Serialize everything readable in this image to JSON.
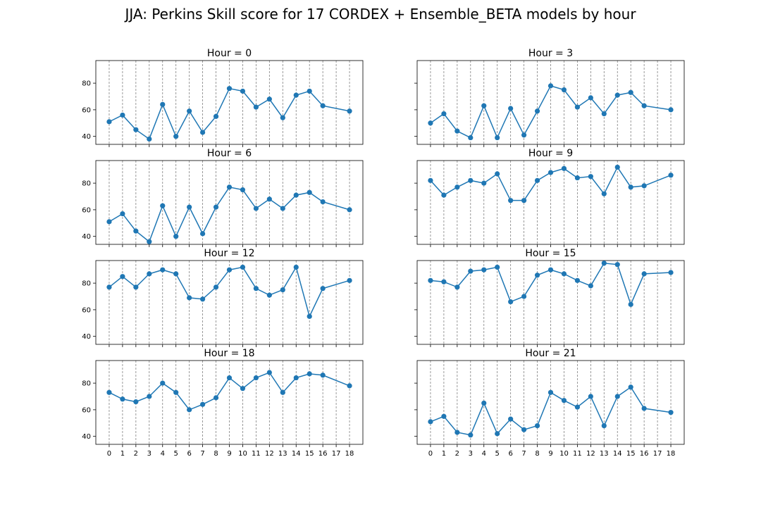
{
  "figure": {
    "title": "JJA: Perkins Skill score for 17 CORDEX + Ensemble_BETA models by hour"
  },
  "colors": {
    "series": "#1f77b4",
    "grid": "#808080",
    "axis": "#000000"
  },
  "chart_data": [
    {
      "type": "line",
      "title": "Hour = 0",
      "x": [
        0,
        1,
        2,
        3,
        4,
        5,
        6,
        7,
        8,
        9,
        10,
        11,
        12,
        13,
        14,
        15,
        16,
        18
      ],
      "values": [
        51,
        56,
        45,
        38,
        64,
        40,
        59,
        43,
        55,
        76,
        74,
        62,
        68,
        54,
        71,
        74,
        63,
        59
      ],
      "xticks": [
        0,
        1,
        2,
        3,
        4,
        5,
        6,
        7,
        8,
        9,
        10,
        11,
        12,
        13,
        14,
        15,
        16,
        17,
        18
      ],
      "yticks": [
        40,
        60,
        80
      ],
      "xlim": [
        -1,
        19
      ],
      "ylim": [
        34,
        97
      ],
      "grid": "vertical dashed"
    },
    {
      "type": "line",
      "title": "Hour = 3",
      "x": [
        0,
        1,
        2,
        3,
        4,
        5,
        6,
        7,
        8,
        9,
        10,
        11,
        12,
        13,
        14,
        15,
        16,
        18
      ],
      "values": [
        50,
        57,
        44,
        39,
        63,
        39,
        61,
        41,
        59,
        78,
        75,
        62,
        69,
        57,
        71,
        73,
        63,
        60
      ],
      "xticks": [
        0,
        1,
        2,
        3,
        4,
        5,
        6,
        7,
        8,
        9,
        10,
        11,
        12,
        13,
        14,
        15,
        16,
        17,
        18
      ],
      "yticks": [
        40,
        60,
        80
      ],
      "xlim": [
        -1,
        19
      ],
      "ylim": [
        34,
        97
      ],
      "grid": "vertical dashed"
    },
    {
      "type": "line",
      "title": "Hour = 6",
      "x": [
        0,
        1,
        2,
        3,
        4,
        5,
        6,
        7,
        8,
        9,
        10,
        11,
        12,
        13,
        14,
        15,
        16,
        18
      ],
      "values": [
        51,
        57,
        44,
        36,
        63,
        40,
        62,
        42,
        62,
        77,
        75,
        61,
        68,
        61,
        71,
        73,
        66,
        60
      ],
      "xticks": [
        0,
        1,
        2,
        3,
        4,
        5,
        6,
        7,
        8,
        9,
        10,
        11,
        12,
        13,
        14,
        15,
        16,
        17,
        18
      ],
      "yticks": [
        40,
        60,
        80
      ],
      "xlim": [
        -1,
        19
      ],
      "ylim": [
        34,
        97
      ],
      "grid": "vertical dashed"
    },
    {
      "type": "line",
      "title": "Hour = 9",
      "x": [
        0,
        1,
        2,
        3,
        4,
        5,
        6,
        7,
        8,
        9,
        10,
        11,
        12,
        13,
        14,
        15,
        16,
        18
      ],
      "values": [
        82,
        71,
        77,
        82,
        80,
        87,
        67,
        67,
        82,
        88,
        91,
        84,
        85,
        72,
        92,
        77,
        78,
        86
      ],
      "xticks": [
        0,
        1,
        2,
        3,
        4,
        5,
        6,
        7,
        8,
        9,
        10,
        11,
        12,
        13,
        14,
        15,
        16,
        17,
        18
      ],
      "yticks": [
        40,
        60,
        80
      ],
      "xlim": [
        -1,
        19
      ],
      "ylim": [
        34,
        97
      ],
      "grid": "vertical dashed"
    },
    {
      "type": "line",
      "title": "Hour = 12",
      "x": [
        0,
        1,
        2,
        3,
        4,
        5,
        6,
        7,
        8,
        9,
        10,
        11,
        12,
        13,
        14,
        15,
        16,
        18
      ],
      "values": [
        77,
        85,
        77,
        87,
        90,
        87,
        69,
        68,
        77,
        90,
        92,
        76,
        71,
        75,
        92,
        55,
        76,
        82
      ],
      "xticks": [
        0,
        1,
        2,
        3,
        4,
        5,
        6,
        7,
        8,
        9,
        10,
        11,
        12,
        13,
        14,
        15,
        16,
        17,
        18
      ],
      "yticks": [
        40,
        60,
        80
      ],
      "xlim": [
        -1,
        19
      ],
      "ylim": [
        34,
        97
      ],
      "grid": "vertical dashed"
    },
    {
      "type": "line",
      "title": "Hour = 15",
      "x": [
        0,
        1,
        2,
        3,
        4,
        5,
        6,
        7,
        8,
        9,
        10,
        11,
        12,
        13,
        14,
        15,
        16,
        18
      ],
      "values": [
        82,
        81,
        77,
        89,
        90,
        92,
        66,
        70,
        86,
        90,
        87,
        82,
        78,
        95,
        94,
        64,
        87,
        88
      ],
      "xticks": [
        0,
        1,
        2,
        3,
        4,
        5,
        6,
        7,
        8,
        9,
        10,
        11,
        12,
        13,
        14,
        15,
        16,
        17,
        18
      ],
      "yticks": [
        40,
        60,
        80
      ],
      "xlim": [
        -1,
        19
      ],
      "ylim": [
        34,
        97
      ],
      "grid": "vertical dashed"
    },
    {
      "type": "line",
      "title": "Hour = 18",
      "x": [
        0,
        1,
        2,
        3,
        4,
        5,
        6,
        7,
        8,
        9,
        10,
        11,
        12,
        13,
        14,
        15,
        16,
        18
      ],
      "values": [
        73,
        68,
        66,
        70,
        80,
        73,
        60,
        64,
        69,
        84,
        76,
        84,
        88,
        73,
        84,
        87,
        86,
        78
      ],
      "xticks": [
        0,
        1,
        2,
        3,
        4,
        5,
        6,
        7,
        8,
        9,
        10,
        11,
        12,
        13,
        14,
        15,
        16,
        17,
        18
      ],
      "yticks": [
        40,
        60,
        80
      ],
      "xlim": [
        -1,
        19
      ],
      "ylim": [
        34,
        97
      ],
      "grid": "vertical dashed"
    },
    {
      "type": "line",
      "title": "Hour = 21",
      "x": [
        0,
        1,
        2,
        3,
        4,
        5,
        6,
        7,
        8,
        9,
        10,
        11,
        12,
        13,
        14,
        15,
        16,
        18
      ],
      "values": [
        51,
        55,
        43,
        41,
        65,
        42,
        53,
        45,
        48,
        73,
        67,
        62,
        70,
        48,
        70,
        77,
        61,
        58
      ],
      "xticks": [
        0,
        1,
        2,
        3,
        4,
        5,
        6,
        7,
        8,
        9,
        10,
        11,
        12,
        13,
        14,
        15,
        16,
        17,
        18
      ],
      "yticks": [
        40,
        60,
        80
      ],
      "xlim": [
        -1,
        19
      ],
      "ylim": [
        34,
        97
      ],
      "grid": "vertical dashed"
    }
  ]
}
